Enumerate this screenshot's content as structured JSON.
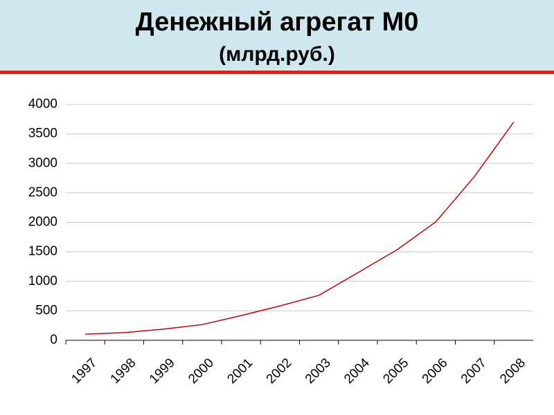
{
  "chart_data": {
    "type": "line",
    "title": "Денежный агрегат М0",
    "subtitle": "(млрд.руб.)",
    "categories": [
      "1997",
      "1998",
      "1999",
      "2000",
      "2001",
      "2002",
      "2003",
      "2004",
      "2005",
      "2006",
      "2007",
      "2008"
    ],
    "values": [
      103.8,
      130.4,
      188.8,
      266.1,
      418.9,
      583.8,
      763.2,
      1147,
      1534,
      2009,
      2785,
      3702
    ],
    "color": "#c00000",
    "ylim": [
      0,
      4000
    ],
    "yticks": [
      0,
      500,
      1000,
      1500,
      2000,
      2500,
      3000,
      3500,
      4000
    ],
    "grid": true
  }
}
